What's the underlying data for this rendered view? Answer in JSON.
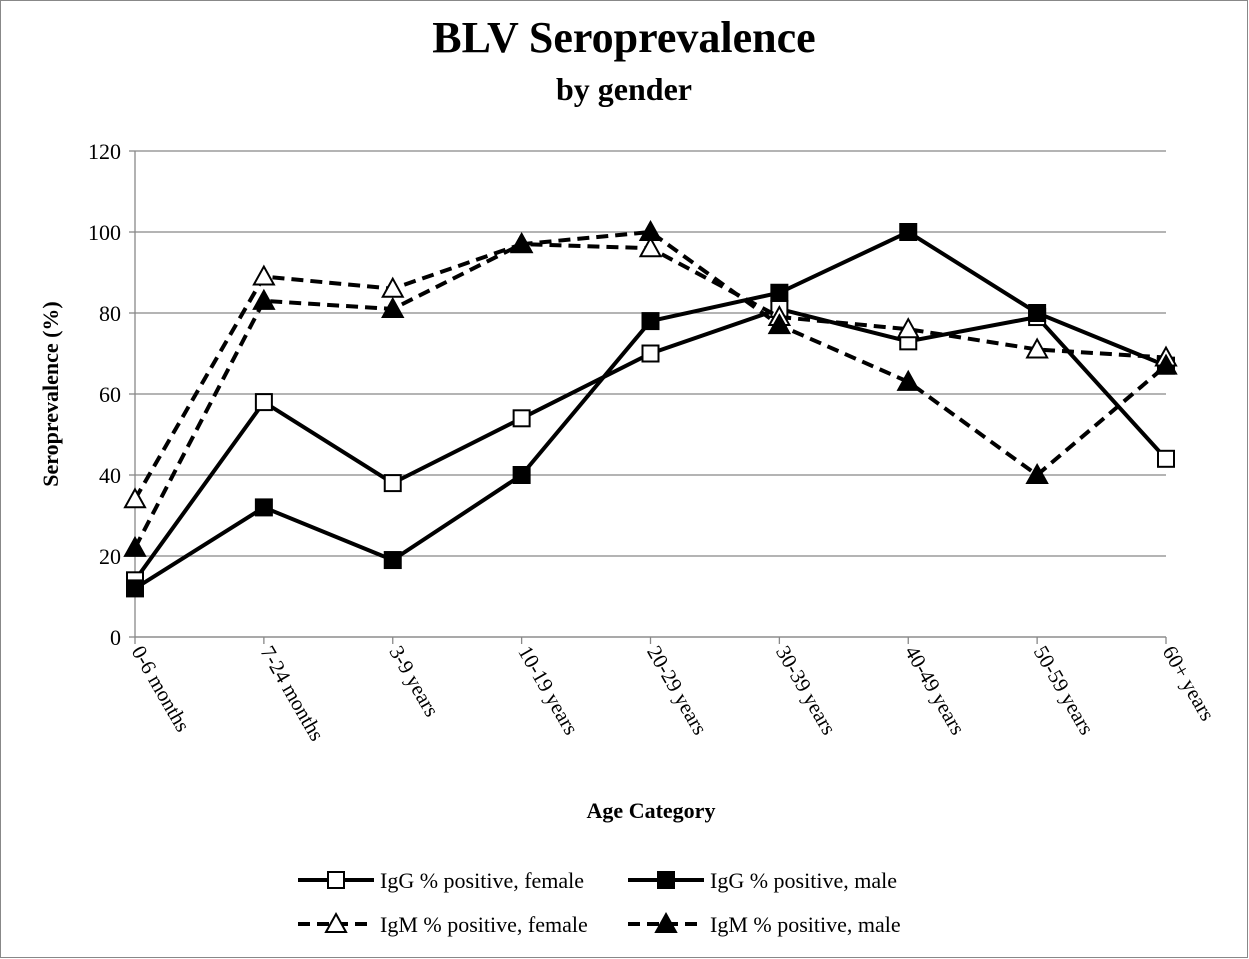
{
  "chart_data": {
    "type": "line",
    "title": "BLV Seroprevalence",
    "subtitle": "by gender",
    "x_label": "Age Category",
    "y_label": "Seroprevalence (%)",
    "categories": [
      "0-6 months",
      "7-24 months",
      "3-9 years",
      "10-19 years",
      "20-29 years",
      "30-39 years",
      "40-49 years",
      "50-59 years",
      "60+ years"
    ],
    "ylim": [
      0,
      120
    ],
    "yticks": [
      0,
      20,
      40,
      60,
      80,
      100,
      120
    ],
    "grid": true,
    "legend": "bottom",
    "series": [
      {
        "name": "IgG % positive, female",
        "color": "#000000",
        "dash": "solid",
        "marker": "square",
        "filled": false,
        "values": [
          14,
          58,
          38,
          54,
          70,
          81,
          73,
          79,
          44
        ]
      },
      {
        "name": "IgG % positive, male",
        "color": "#000000",
        "dash": "solid",
        "marker": "square",
        "filled": true,
        "values": [
          12,
          32,
          19,
          40,
          78,
          85,
          100,
          80,
          67
        ]
      },
      {
        "name": "IgM % positive, female",
        "color": "#000000",
        "dash": "dashed",
        "marker": "triangle",
        "filled": false,
        "values": [
          34,
          89,
          86,
          97,
          96,
          79,
          76,
          71,
          69
        ]
      },
      {
        "name": "IgM % positive, male",
        "color": "#000000",
        "dash": "dashed",
        "marker": "triangle",
        "filled": true,
        "values": [
          22,
          83,
          81,
          97,
          100,
          77,
          63,
          40,
          67
        ]
      }
    ]
  }
}
